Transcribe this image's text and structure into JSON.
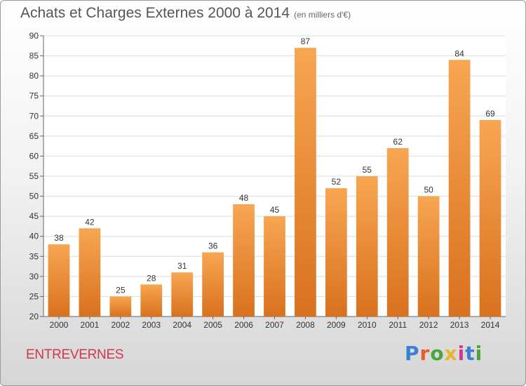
{
  "header": {
    "title": "Achats et Charges Externes 2000 à 2014",
    "unit": "(en milliers d'€)"
  },
  "footer": {
    "commune": "ENTREVERNES",
    "logo": "Proxiti"
  },
  "colors": {
    "bar_top": "#f7a652",
    "bar_bottom": "#d9711e",
    "logo": [
      "#3a7fd5",
      "#e65c2a",
      "#4aa63c",
      "#e6b52a",
      "#d13a8c",
      "#3a7fd5",
      "#4aa63c"
    ]
  },
  "chart_data": {
    "type": "bar",
    "title": "Achats et Charges Externes 2000 à 2014",
    "subtitle": "(en milliers d'€)",
    "categories": [
      "2000",
      "2001",
      "2002",
      "2003",
      "2004",
      "2005",
      "2006",
      "2007",
      "2008",
      "2009",
      "2010",
      "2011",
      "2012",
      "2013",
      "2014"
    ],
    "values": [
      38,
      42,
      25,
      28,
      31,
      36,
      48,
      45,
      87,
      52,
      55,
      62,
      50,
      84,
      69
    ],
    "ylim": [
      20,
      90
    ],
    "yticks": [
      20,
      25,
      30,
      35,
      40,
      45,
      50,
      55,
      60,
      65,
      70,
      75,
      80,
      85,
      90
    ],
    "grid": true,
    "data_labels": true
  }
}
